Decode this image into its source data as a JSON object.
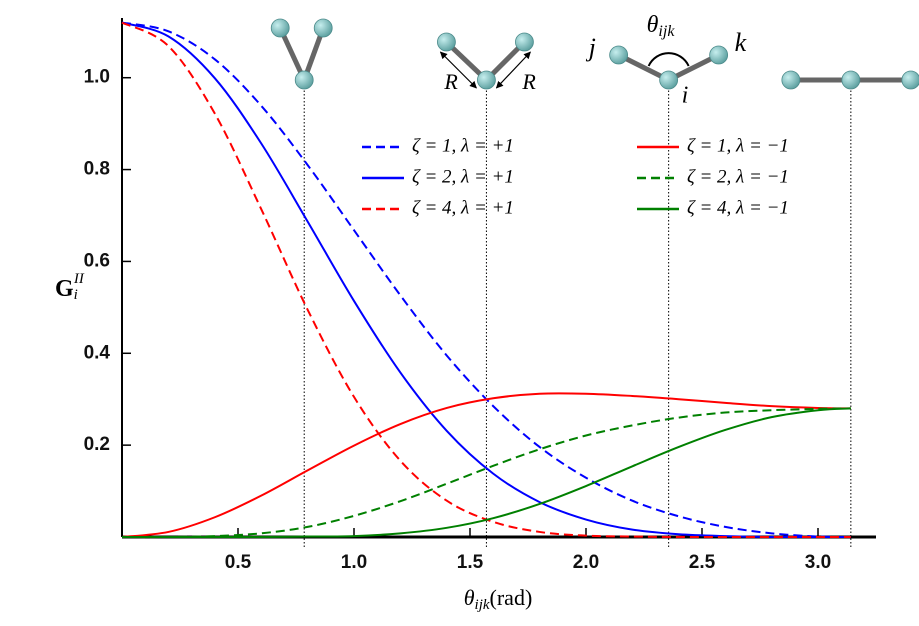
{
  "chart_data": {
    "type": "line",
    "xlabel": {
      "base": "θ",
      "sub": "ijk",
      "rest": "(rad)"
    },
    "ylabel": {
      "base": "G",
      "sub": "i",
      "sup": "II"
    },
    "x": [
      0,
      0.2,
      0.4,
      0.6,
      0.8,
      1.0,
      1.2,
      1.4,
      1.6,
      1.8,
      2.0,
      2.2,
      2.4,
      2.6,
      2.8,
      3.0,
      3.1416
    ],
    "series": [
      {
        "name": "ζ = 1, λ = +1",
        "color": "#0000ff",
        "dashed": true,
        "values": [
          1.12,
          1.101,
          1.04,
          0.939,
          0.81,
          0.668,
          0.526,
          0.395,
          0.285,
          0.196,
          0.129,
          0.079,
          0.045,
          0.022,
          0.008,
          0.001,
          0
        ]
      },
      {
        "name": "ζ = 2, λ = +1",
        "color": "#0000ff",
        "dashed": false,
        "values": [
          1.12,
          1.09,
          0.999,
          0.857,
          0.687,
          0.514,
          0.358,
          0.231,
          0.138,
          0.076,
          0.038,
          0.016,
          0.006,
          0.002,
          0,
          0,
          0
        ]
      },
      {
        "name": "ζ = 4, λ = +1",
        "color": "#ff0000",
        "dashed": true,
        "values": [
          1.12,
          1.069,
          0.922,
          0.714,
          0.495,
          0.305,
          0.166,
          0.079,
          0.033,
          0.011,
          0.003,
          0.001,
          0,
          0,
          0,
          0,
          0
        ]
      },
      {
        "name": "ζ = 1, λ = −1",
        "color": "#ff0000",
        "dashed": false,
        "values": [
          0,
          0.011,
          0.043,
          0.09,
          0.145,
          0.199,
          0.246,
          0.281,
          0.302,
          0.312,
          0.312,
          0.307,
          0.3,
          0.292,
          0.285,
          0.281,
          0.28
        ]
      },
      {
        "name": "ζ = 2, λ = −1",
        "color": "#008000",
        "dashed": true,
        "values": [
          0,
          0,
          0.002,
          0.008,
          0.022,
          0.046,
          0.078,
          0.116,
          0.155,
          0.191,
          0.221,
          0.243,
          0.26,
          0.271,
          0.276,
          0.279,
          0.28
        ]
      },
      {
        "name": "ζ = 4, λ = −1",
        "color": "#008000",
        "dashed": false,
        "values": [
          0,
          0,
          0,
          0,
          0.001,
          0.002,
          0.008,
          0.02,
          0.041,
          0.072,
          0.111,
          0.154,
          0.196,
          0.233,
          0.261,
          0.276,
          0.28
        ]
      }
    ],
    "markers_x": [
      0.7854,
      1.5708,
      2.3562,
      3.1416
    ],
    "annotations": {
      "R": "R",
      "theta": {
        "base": "θ",
        "sub": "ijk"
      },
      "j": "j",
      "k": "k",
      "i": "i"
    },
    "xlim": [
      0,
      3.25
    ],
    "ylim": [
      0,
      1.13
    ],
    "xticks": [
      0.5,
      {
        "value": 1,
        "label": "1.0"
      },
      1.5,
      {
        "value": 2,
        "label": "2.0"
      },
      2.5,
      {
        "value": 3,
        "label": "3.0"
      }
    ],
    "yticks": [
      0.2,
      0.4,
      0.6,
      0.8,
      {
        "value": 1,
        "label": "1.0"
      }
    ]
  }
}
